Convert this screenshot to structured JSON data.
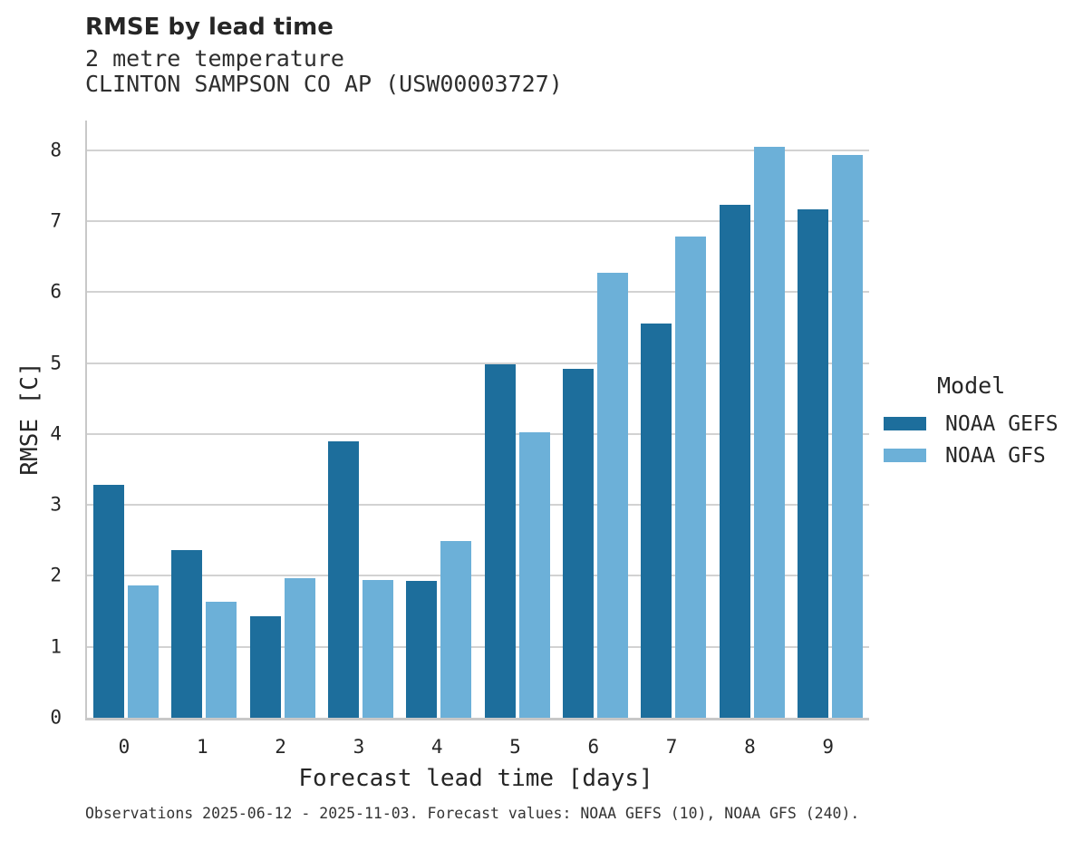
{
  "header": {
    "title": "RMSE by lead time",
    "subtitle_line1": "2 metre temperature",
    "subtitle_line2": "CLINTON SAMPSON CO AP (USW00003727)"
  },
  "chart_data": {
    "type": "bar",
    "title": "RMSE by lead time",
    "subtitle": [
      "2 metre temperature",
      "CLINTON SAMPSON CO AP (USW00003727)"
    ],
    "categories": [
      "0",
      "1",
      "2",
      "3",
      "4",
      "5",
      "6",
      "7",
      "8",
      "9"
    ],
    "series": [
      {
        "name": "NOAA GEFS",
        "color": "#1d6e9c",
        "values": [
          3.29,
          2.37,
          1.43,
          3.9,
          1.93,
          4.98,
          4.92,
          5.56,
          7.23,
          7.17
        ]
      },
      {
        "name": "NOAA GFS",
        "color": "#6cb0d8",
        "values": [
          1.87,
          1.63,
          1.97,
          1.94,
          2.49,
          4.03,
          6.28,
          6.79,
          8.05,
          7.93
        ]
      }
    ],
    "xlabel": "Forecast lead time [days]",
    "ylabel": "RMSE [C]",
    "ylim": [
      0,
      8.42
    ],
    "yticks": [
      0,
      1,
      2,
      3,
      4,
      5,
      6,
      7,
      8
    ],
    "grid": "horizontal",
    "grid_color": "#d2d2d2",
    "legend": {
      "title": "Model",
      "position": "right"
    }
  },
  "footer": {
    "text": "Observations 2025-06-12 - 2025-11-03. Forecast values: NOAA GEFS (10), NOAA GFS (240)."
  },
  "colors": {
    "series_dark": "#1d6e9c",
    "series_light": "#6cb0d8",
    "text": "#262626",
    "grid": "#d2d2d2",
    "spine": "#c8c8c8",
    "background": "#ffffff"
  }
}
